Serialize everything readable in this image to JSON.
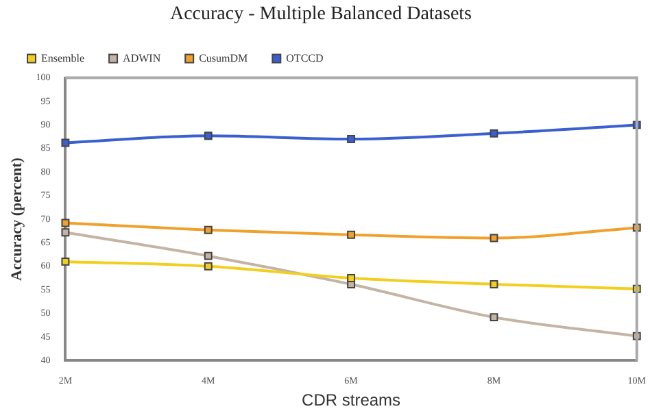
{
  "chart_data": {
    "type": "line",
    "title": "Accuracy - Multiple Balanced Datasets",
    "xlabel": "CDR streams",
    "ylabel": "Accuracy (percent)",
    "categories": [
      "2M",
      "4M",
      "6M",
      "8M",
      "10M"
    ],
    "series": [
      {
        "name": "Ensemble",
        "color": "#f2cf1f",
        "values": [
          61,
          60,
          57.5,
          56.2,
          55.2
        ]
      },
      {
        "name": "ADWIN",
        "color": "#c4b4a4",
        "values": [
          67.2,
          62.2,
          56.2,
          49.2,
          45.2
        ]
      },
      {
        "name": "CusumDM",
        "color": "#f0a02c",
        "values": [
          69.2,
          67.7,
          66.7,
          66,
          68.2
        ]
      },
      {
        "name": "OTCCD",
        "color": "#3a5fd0",
        "values": [
          86.2,
          87.7,
          87,
          88.2,
          90
        ]
      }
    ],
    "ylim": [
      40,
      100
    ],
    "yticks": [
      40,
      45,
      50,
      55,
      60,
      65,
      70,
      75,
      80,
      85,
      90,
      95,
      100
    ],
    "grid": false,
    "legend": "top left",
    "marker": "square"
  }
}
